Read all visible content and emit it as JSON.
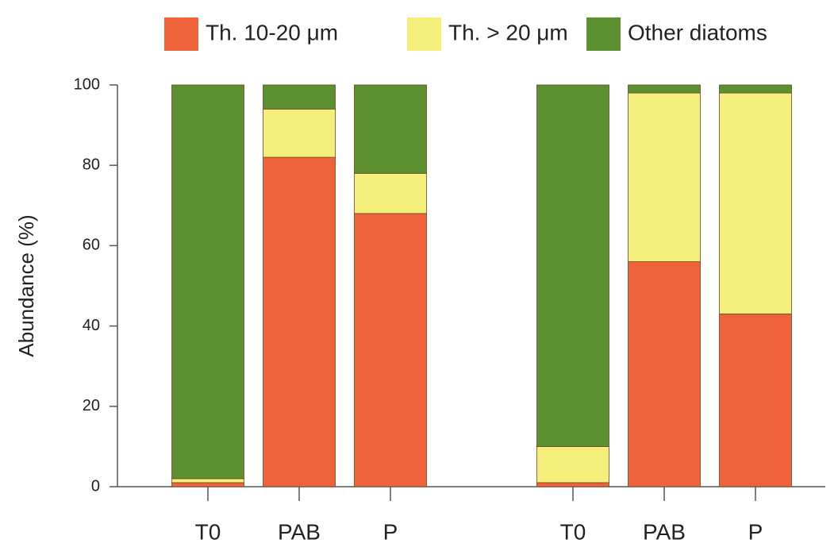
{
  "chart_data": {
    "type": "stacked_bar",
    "y_label": "Abundance (%)",
    "categories": [
      "T0",
      "PAB",
      "P",
      null,
      "T0",
      "PAB",
      "P"
    ],
    "series": [
      {
        "name": "Th. 10-20 μm",
        "color": "#ef623a",
        "values": [
          1,
          82,
          68,
          null,
          1,
          56,
          43
        ]
      },
      {
        "name": "Th. > 20 μm",
        "color": "#f3ef7a",
        "values": [
          1,
          12,
          10,
          null,
          9,
          42,
          55
        ]
      },
      {
        "name": "Other diatoms",
        "color": "#5b8f2f",
        "values": [
          98,
          6,
          22,
          null,
          90,
          2,
          2
        ]
      }
    ],
    "ylim": [
      0,
      100
    ],
    "yticks": [
      0,
      20,
      40,
      60,
      80,
      100
    ],
    "legend": "top"
  }
}
